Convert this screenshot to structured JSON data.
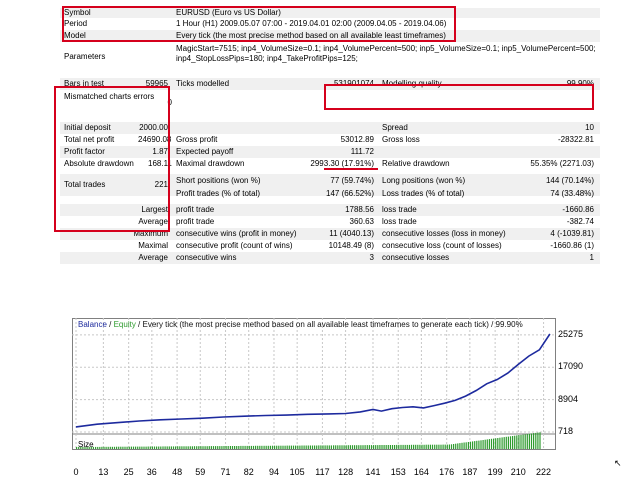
{
  "summary": {
    "symbol_label": "Symbol",
    "symbol_value": "EURUSD (Euro vs US Dollar)",
    "period_label": "Period",
    "period_value": "1 Hour (H1) 2009.05.07 07:00 - 2019.04.01 02:00 (2009.04.05 - 2019.04.06)",
    "model_label": "Model",
    "model_value": "Every tick (the most precise method based on all available least timeframes)",
    "parameters_label": "Parameters",
    "parameters_value": "MagicStart=7515; inp4_VolumeSize=0.1; inp4_VolumePercent=500; inp5_VolumeSize=0.1; inp5_VolumePercent=500; inp4_StopLossPips=180; inp4_TakeProfitPips=125;"
  },
  "stats": {
    "bars_label": "Bars in test",
    "bars_value": "59965",
    "ticks_label": "Ticks modelled",
    "ticks_value": "531901074",
    "quality_label": "Modelling quality",
    "quality_value": "99.90%",
    "mismatch_label": "Mismatched charts errors",
    "mismatch_value": "0",
    "deposit_label": "Initial deposit",
    "deposit_value": "2000.00",
    "spread_label": "Spread",
    "spread_value": "10",
    "netprofit_label": "Total net profit",
    "netprofit_value": "24690.08",
    "grossprofit_label": "Gross profit",
    "grossprofit_value": "53012.89",
    "grossloss_label": "Gross loss",
    "grossloss_value": "-28322.81",
    "pf_label": "Profit factor",
    "pf_value": "1.87",
    "payoff_label": "Expected payoff",
    "payoff_value": "111.72",
    "absdd_label": "Absolute drawdown",
    "absdd_value": "168.11",
    "maxdd_label": "Maximal drawdown",
    "maxdd_value": "2993.30 (17.91%)",
    "reldd_label": "Relative drawdown",
    "reldd_value": "55.35% (2271.03)",
    "trades_label": "Total trades",
    "trades_value": "221",
    "short_label": "Short positions (won %)",
    "short_value": "77 (59.74%)",
    "long_label": "Long positions (won %)",
    "long_value": "144 (70.14%)",
    "profittrades_label": "Profit trades (% of total)",
    "profittrades_value": "147 (66.52%)",
    "losstrades_label": "Loss trades (% of total)",
    "losstrades_value": "74 (33.48%)",
    "largest_label": "Largest",
    "largest_profit_label": "profit trade",
    "largest_profit_value": "1788.56",
    "largest_loss_label": "loss trade",
    "largest_loss_value": "-1660.86",
    "average_label": "Average",
    "average_profit_label": "profit trade",
    "average_profit_value": "360.63",
    "average_loss_label": "loss trade",
    "average_loss_value": "-382.74",
    "maximum_label": "Maximum",
    "max_wins_label": "consecutive wins (profit in money)",
    "max_wins_value": "11 (4040.13)",
    "max_losses_label": "consecutive losses (loss in money)",
    "max_losses_value": "4 (-1039.81)",
    "maximal_label": "Maximal",
    "maxl_profit_label": "consecutive profit (count of wins)",
    "maxl_profit_value": "10148.49 (8)",
    "maxl_loss_label": "consecutive loss (count of losses)",
    "maxl_loss_value": "-1660.86 (1)",
    "average2_label": "Average",
    "avg_wins_label": "consecutive wins",
    "avg_wins_value": "3",
    "avg_losses_label": "consecutive losses",
    "avg_losses_value": "1"
  },
  "chart_title": {
    "balance": "Balance",
    "sep": " / ",
    "equity": "Equity",
    "rest": " / Every tick (the most precise method based on all available least timeframes to generate each tick) / 99.90%"
  },
  "size_label": "Size",
  "colors": {
    "balance": "#1d2a9e",
    "equity": "#2e9b2e",
    "highlight": "#d5001c"
  },
  "chart_data": {
    "type": "line",
    "ylim": [
      718,
      26500
    ],
    "xlim": [
      0,
      226
    ],
    "y_ticks": [
      "25275",
      "17090",
      "8904",
      "718"
    ],
    "x_ticks": [
      "0",
      "13",
      "25",
      "36",
      "48",
      "59",
      "71",
      "82",
      "94",
      "105",
      "117",
      "128",
      "141",
      "153",
      "164",
      "176",
      "187",
      "199",
      "210",
      "222"
    ],
    "series": [
      {
        "x": [
          0,
          10,
          20,
          30,
          40,
          50,
          60,
          70,
          80,
          90,
          100,
          110,
          120,
          128,
          135,
          141,
          145,
          150,
          155,
          160,
          165,
          170,
          175,
          180,
          185,
          190,
          195,
          200,
          205,
          210,
          215,
          220,
          225
        ],
        "values": [
          2000,
          2700,
          3100,
          3500,
          3800,
          4000,
          4200,
          4500,
          4700,
          4900,
          5000,
          5200,
          5300,
          5400,
          5800,
          6400,
          6000,
          6600,
          6900,
          7100,
          6800,
          7400,
          8000,
          8700,
          9800,
          11200,
          12900,
          14000,
          15600,
          17800,
          19900,
          21500,
          25500
        ]
      }
    ],
    "size_bars_count": 221
  }
}
